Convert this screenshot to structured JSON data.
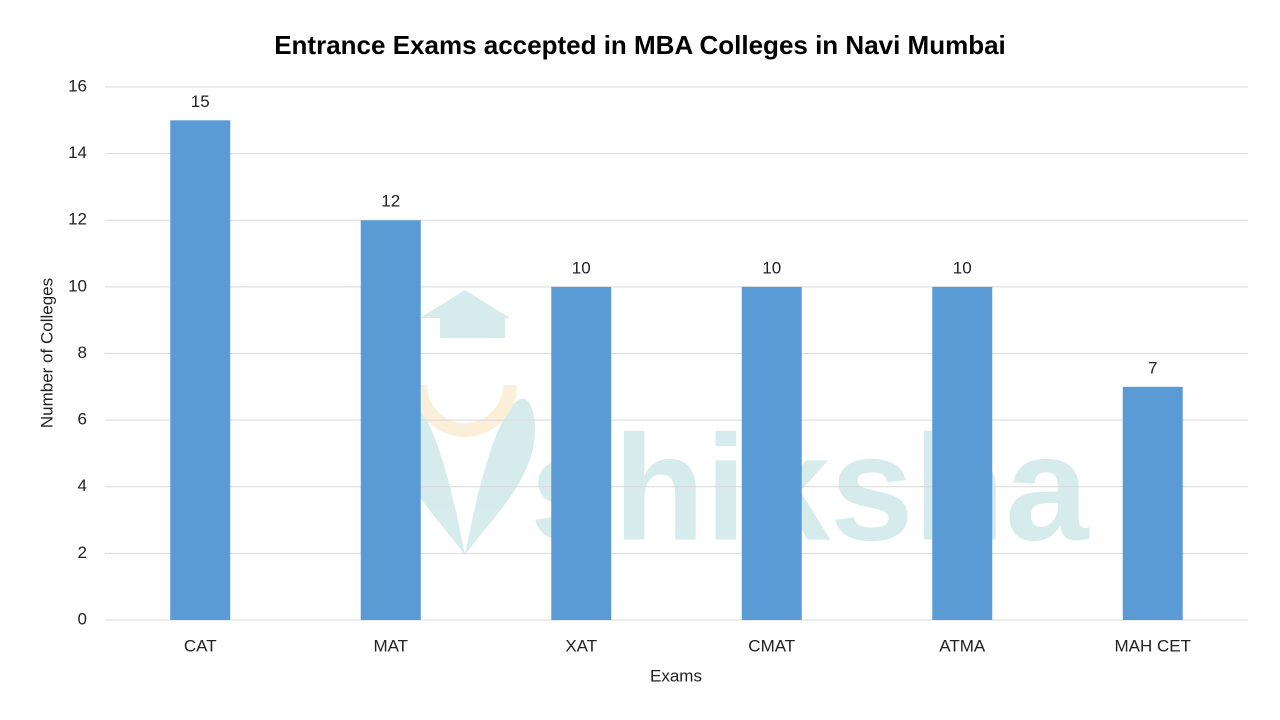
{
  "chart_data": {
    "type": "bar",
    "title": "Entrance Exams accepted in MBA Colleges in Navi Mumbai",
    "x_label": "Exams",
    "y_label": "Number of Colleges",
    "categories": [
      "CAT",
      "MAT",
      "XAT",
      "CMAT",
      "ATMA",
      "MAH CET"
    ],
    "values": [
      15,
      12,
      10,
      10,
      10,
      7
    ],
    "color": "#5b9bd5",
    "ylim": [
      0,
      16
    ],
    "yticks": [
      0,
      2,
      4,
      6,
      8,
      10,
      12,
      14,
      16
    ],
    "grid": true,
    "watermark": "shiksha"
  }
}
